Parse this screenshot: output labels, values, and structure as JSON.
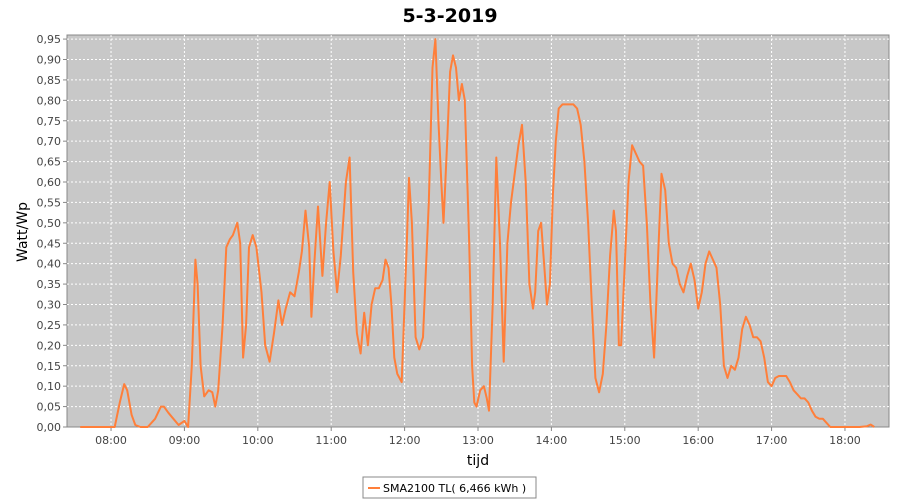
{
  "chart_data": {
    "type": "line",
    "title": "5-3-2019",
    "xlabel": "tijd",
    "ylabel": "Watt/Wp",
    "xlim": [
      7.4,
      18.6
    ],
    "ylim": [
      0,
      0.96
    ],
    "grid": true,
    "legend_position": "bottom-center",
    "background_color": "#c8c8c8",
    "grid_color": "#ffffff",
    "x_ticks": [
      {
        "value": 8,
        "label": "08:00"
      },
      {
        "value": 9,
        "label": "09:00"
      },
      {
        "value": 10,
        "label": "10:00"
      },
      {
        "value": 11,
        "label": "11:00"
      },
      {
        "value": 12,
        "label": "12:00"
      },
      {
        "value": 13,
        "label": "13:00"
      },
      {
        "value": 14,
        "label": "14:00"
      },
      {
        "value": 15,
        "label": "15:00"
      },
      {
        "value": 16,
        "label": "16:00"
      },
      {
        "value": 17,
        "label": "17:00"
      },
      {
        "value": 18,
        "label": "18:00"
      }
    ],
    "y_ticks": [
      {
        "value": 0,
        "label": "0,00"
      },
      {
        "value": 0.05,
        "label": "0,05"
      },
      {
        "value": 0.1,
        "label": "0,10"
      },
      {
        "value": 0.15,
        "label": "0,15"
      },
      {
        "value": 0.2,
        "label": "0,20"
      },
      {
        "value": 0.25,
        "label": "0,25"
      },
      {
        "value": 0.3,
        "label": "0,30"
      },
      {
        "value": 0.35,
        "label": "0,35"
      },
      {
        "value": 0.4,
        "label": "0,40"
      },
      {
        "value": 0.45,
        "label": "0,45"
      },
      {
        "value": 0.5,
        "label": "0,50"
      },
      {
        "value": 0.55,
        "label": "0,55"
      },
      {
        "value": 0.6,
        "label": "0,60"
      },
      {
        "value": 0.65,
        "label": "0,65"
      },
      {
        "value": 0.7,
        "label": "0,70"
      },
      {
        "value": 0.75,
        "label": "0,75"
      },
      {
        "value": 0.8,
        "label": "0,80"
      },
      {
        "value": 0.85,
        "label": "0,85"
      },
      {
        "value": 0.9,
        "label": "0,90"
      },
      {
        "value": 0.95,
        "label": "0,95"
      }
    ],
    "series": [
      {
        "name": "SMA2100 TL( 6,466 kWh )",
        "color": "#ff7f3a",
        "points": [
          [
            7.58,
            0.0
          ],
          [
            7.9,
            0.0
          ],
          [
            8.05,
            0.0
          ],
          [
            8.12,
            0.06
          ],
          [
            8.18,
            0.105
          ],
          [
            8.22,
            0.09
          ],
          [
            8.28,
            0.03
          ],
          [
            8.33,
            0.005
          ],
          [
            8.4,
            0.0
          ],
          [
            8.5,
            0.0
          ],
          [
            8.6,
            0.02
          ],
          [
            8.68,
            0.05
          ],
          [
            8.72,
            0.05
          ],
          [
            8.78,
            0.035
          ],
          [
            8.85,
            0.02
          ],
          [
            8.92,
            0.005
          ],
          [
            9.0,
            0.015
          ],
          [
            9.05,
            0.0
          ],
          [
            9.1,
            0.15
          ],
          [
            9.15,
            0.41
          ],
          [
            9.18,
            0.35
          ],
          [
            9.22,
            0.15
          ],
          [
            9.27,
            0.075
          ],
          [
            9.33,
            0.09
          ],
          [
            9.38,
            0.085
          ],
          [
            9.42,
            0.05
          ],
          [
            9.46,
            0.09
          ],
          [
            9.52,
            0.25
          ],
          [
            9.57,
            0.44
          ],
          [
            9.62,
            0.46
          ],
          [
            9.66,
            0.47
          ],
          [
            9.72,
            0.5
          ],
          [
            9.76,
            0.45
          ],
          [
            9.8,
            0.17
          ],
          [
            9.84,
            0.25
          ],
          [
            9.88,
            0.44
          ],
          [
            9.93,
            0.47
          ],
          [
            9.98,
            0.44
          ],
          [
            10.05,
            0.33
          ],
          [
            10.1,
            0.2
          ],
          [
            10.16,
            0.16
          ],
          [
            10.22,
            0.23
          ],
          [
            10.28,
            0.31
          ],
          [
            10.33,
            0.25
          ],
          [
            10.38,
            0.29
          ],
          [
            10.44,
            0.33
          ],
          [
            10.5,
            0.32
          ],
          [
            10.56,
            0.38
          ],
          [
            10.6,
            0.43
          ],
          [
            10.65,
            0.53
          ],
          [
            10.7,
            0.44
          ],
          [
            10.73,
            0.27
          ],
          [
            10.77,
            0.4
          ],
          [
            10.82,
            0.54
          ],
          [
            10.88,
            0.37
          ],
          [
            10.93,
            0.5
          ],
          [
            10.98,
            0.6
          ],
          [
            11.03,
            0.43
          ],
          [
            11.08,
            0.33
          ],
          [
            11.13,
            0.42
          ],
          [
            11.2,
            0.6
          ],
          [
            11.25,
            0.66
          ],
          [
            11.3,
            0.38
          ],
          [
            11.35,
            0.23
          ],
          [
            11.4,
            0.18
          ],
          [
            11.45,
            0.28
          ],
          [
            11.5,
            0.2
          ],
          [
            11.55,
            0.3
          ],
          [
            11.6,
            0.34
          ],
          [
            11.65,
            0.34
          ],
          [
            11.7,
            0.36
          ],
          [
            11.74,
            0.41
          ],
          [
            11.78,
            0.39
          ],
          [
            11.82,
            0.3
          ],
          [
            11.86,
            0.17
          ],
          [
            11.9,
            0.13
          ],
          [
            11.96,
            0.11
          ],
          [
            12.03,
            0.45
          ],
          [
            12.06,
            0.61
          ],
          [
            12.1,
            0.5
          ],
          [
            12.15,
            0.22
          ],
          [
            12.2,
            0.19
          ],
          [
            12.25,
            0.22
          ],
          [
            12.33,
            0.55
          ],
          [
            12.38,
            0.88
          ],
          [
            12.42,
            0.95
          ],
          [
            12.46,
            0.75
          ],
          [
            12.5,
            0.6
          ],
          [
            12.53,
            0.5
          ],
          [
            12.58,
            0.7
          ],
          [
            12.62,
            0.87
          ],
          [
            12.66,
            0.91
          ],
          [
            12.7,
            0.88
          ],
          [
            12.74,
            0.8
          ],
          [
            12.78,
            0.84
          ],
          [
            12.82,
            0.8
          ],
          [
            12.88,
            0.45
          ],
          [
            12.92,
            0.15
          ],
          [
            12.95,
            0.06
          ],
          [
            12.98,
            0.05
          ],
          [
            13.03,
            0.09
          ],
          [
            13.08,
            0.1
          ],
          [
            13.12,
            0.07
          ],
          [
            13.15,
            0.04
          ],
          [
            13.2,
            0.3
          ],
          [
            13.25,
            0.66
          ],
          [
            13.3,
            0.45
          ],
          [
            13.35,
            0.16
          ],
          [
            13.4,
            0.45
          ],
          [
            13.45,
            0.55
          ],
          [
            13.5,
            0.62
          ],
          [
            13.55,
            0.69
          ],
          [
            13.6,
            0.74
          ],
          [
            13.65,
            0.6
          ],
          [
            13.7,
            0.35
          ],
          [
            13.75,
            0.29
          ],
          [
            13.78,
            0.33
          ],
          [
            13.82,
            0.48
          ],
          [
            13.86,
            0.5
          ],
          [
            13.9,
            0.4
          ],
          [
            13.94,
            0.3
          ],
          [
            13.98,
            0.35
          ],
          [
            14.02,
            0.57
          ],
          [
            14.06,
            0.7
          ],
          [
            14.1,
            0.78
          ],
          [
            14.15,
            0.79
          ],
          [
            14.2,
            0.79
          ],
          [
            14.25,
            0.79
          ],
          [
            14.3,
            0.79
          ],
          [
            14.35,
            0.78
          ],
          [
            14.4,
            0.74
          ],
          [
            14.45,
            0.65
          ],
          [
            14.5,
            0.5
          ],
          [
            14.55,
            0.3
          ],
          [
            14.6,
            0.12
          ],
          [
            14.65,
            0.085
          ],
          [
            14.7,
            0.13
          ],
          [
            14.75,
            0.25
          ],
          [
            14.8,
            0.42
          ],
          [
            14.85,
            0.53
          ],
          [
            14.88,
            0.48
          ],
          [
            14.92,
            0.2
          ],
          [
            14.95,
            0.2
          ],
          [
            15.0,
            0.4
          ],
          [
            15.05,
            0.6
          ],
          [
            15.1,
            0.69
          ],
          [
            15.15,
            0.67
          ],
          [
            15.2,
            0.65
          ],
          [
            15.25,
            0.64
          ],
          [
            15.3,
            0.5
          ],
          [
            15.35,
            0.3
          ],
          [
            15.4,
            0.17
          ],
          [
            15.45,
            0.4
          ],
          [
            15.5,
            0.62
          ],
          [
            15.55,
            0.58
          ],
          [
            15.6,
            0.45
          ],
          [
            15.65,
            0.4
          ],
          [
            15.7,
            0.39
          ],
          [
            15.75,
            0.35
          ],
          [
            15.8,
            0.33
          ],
          [
            15.85,
            0.37
          ],
          [
            15.9,
            0.4
          ],
          [
            15.95,
            0.36
          ],
          [
            16.0,
            0.29
          ],
          [
            16.05,
            0.33
          ],
          [
            16.1,
            0.4
          ],
          [
            16.15,
            0.43
          ],
          [
            16.2,
            0.41
          ],
          [
            16.25,
            0.39
          ],
          [
            16.3,
            0.3
          ],
          [
            16.35,
            0.15
          ],
          [
            16.4,
            0.12
          ],
          [
            16.45,
            0.15
          ],
          [
            16.5,
            0.14
          ],
          [
            16.55,
            0.17
          ],
          [
            16.6,
            0.24
          ],
          [
            16.65,
            0.27
          ],
          [
            16.7,
            0.25
          ],
          [
            16.75,
            0.22
          ],
          [
            16.8,
            0.22
          ],
          [
            16.85,
            0.21
          ],
          [
            16.9,
            0.17
          ],
          [
            16.95,
            0.11
          ],
          [
            17.0,
            0.1
          ],
          [
            17.05,
            0.12
          ],
          [
            17.1,
            0.125
          ],
          [
            17.2,
            0.125
          ],
          [
            17.25,
            0.11
          ],
          [
            17.3,
            0.09
          ],
          [
            17.35,
            0.08
          ],
          [
            17.4,
            0.07
          ],
          [
            17.45,
            0.07
          ],
          [
            17.5,
            0.06
          ],
          [
            17.55,
            0.04
          ],
          [
            17.6,
            0.025
          ],
          [
            17.65,
            0.02
          ],
          [
            17.7,
            0.02
          ],
          [
            17.75,
            0.01
          ],
          [
            17.8,
            0.0
          ],
          [
            18.0,
            0.0
          ],
          [
            18.2,
            0.0
          ],
          [
            18.3,
            0.002
          ],
          [
            18.35,
            0.006
          ],
          [
            18.4,
            0.0
          ]
        ]
      }
    ]
  }
}
